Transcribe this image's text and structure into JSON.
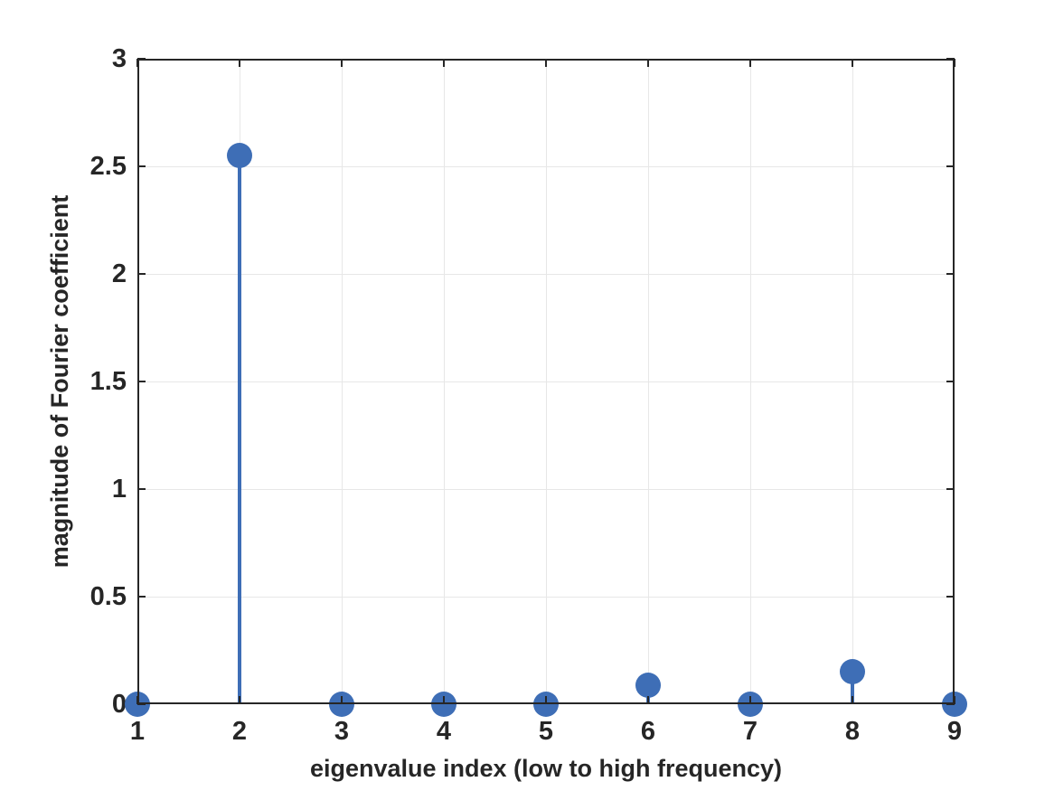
{
  "figure": {
    "background": "#ffffff"
  },
  "chart_data": {
    "type": "stem",
    "title": "",
    "xlabel": "eigenvalue index (low to high frequency)",
    "ylabel": "magnitude of Fourier coefficient",
    "categories": [
      1,
      2,
      3,
      4,
      5,
      6,
      7,
      8,
      9
    ],
    "values": [
      0,
      2.55,
      0,
      0,
      0,
      0.09,
      0,
      0.15,
      0
    ],
    "xlim": [
      1,
      9
    ],
    "ylim": [
      0,
      3
    ],
    "x_tick_labels": [
      "1",
      "2",
      "3",
      "4",
      "5",
      "6",
      "7",
      "8",
      "9"
    ],
    "y_ticks": [
      0,
      0.5,
      1,
      1.5,
      2,
      2.5,
      3
    ],
    "y_tick_labels": [
      "0",
      "0.5",
      "1",
      "1.5",
      "2",
      "2.5",
      "3"
    ],
    "grid": true,
    "legend": "none",
    "marker_style": "filled-circle",
    "colors": {
      "stem": "#3e6eb6",
      "marker": "#3e6eb6",
      "axis": "#262626",
      "grid": "#e7e7e7",
      "text": "#262626",
      "background": "#ffffff"
    }
  }
}
